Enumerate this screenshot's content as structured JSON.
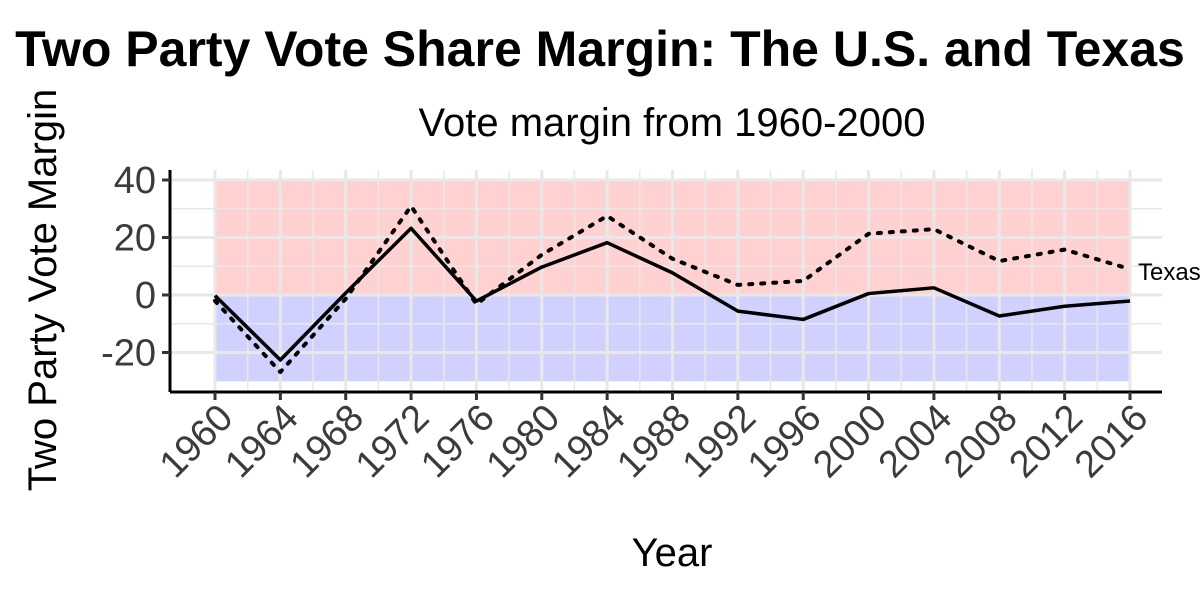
{
  "chart_data": {
    "type": "line",
    "title": "Two Party Vote Share Margin: The U.S. and Texas",
    "subtitle": "Vote margin from 1960-2000",
    "xlabel": "Year",
    "ylabel": "Two Party Vote Margin",
    "x": [
      1960,
      1964,
      1968,
      1972,
      1976,
      1980,
      1984,
      1988,
      1992,
      1996,
      2000,
      2004,
      2008,
      2012,
      2016
    ],
    "yticks": [
      40,
      20,
      0,
      -20
    ],
    "ylim": [
      -30,
      40
    ],
    "series": [
      {
        "values": [
          -0.2,
          -22.6,
          0.7,
          23.2,
          -2.1,
          9.7,
          18.2,
          7.7,
          -5.6,
          -8.5,
          0.5,
          2.5,
          -7.3,
          -3.9,
          -2.1
        ],
        "line_style": "solid"
      },
      {
        "values": [
          -2.0,
          -26.8,
          -1.3,
          30.9,
          -3.2,
          14.0,
          27.5,
          12.6,
          3.5,
          4.9,
          21.3,
          22.9,
          11.8,
          15.8,
          9.0
        ],
        "line_style": "dotted"
      }
    ],
    "annotations": [
      {
        "text": "Texas",
        "x": 2016,
        "y": 9.0
      }
    ],
    "shaded_regions": [
      {
        "from": 0,
        "to": 40,
        "color": "#ffb3b3"
      },
      {
        "from": -30,
        "to": 0,
        "color": "#b3b3ff"
      }
    ],
    "grid": true
  },
  "colors": {
    "line": "#000000",
    "grid": "#e8e8e8"
  }
}
